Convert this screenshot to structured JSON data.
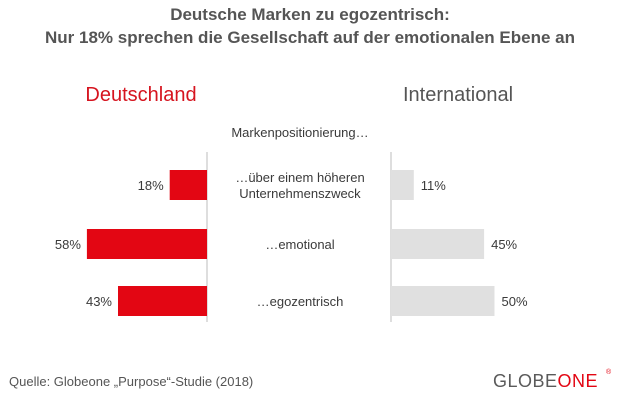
{
  "title_line1": "Deutsche Marken zu egozentrisch:",
  "title_line2": "Nur 18% sprechen die Gesellschaft auf der emotionalen Ebene an",
  "colors": {
    "left_bar": "#e30613",
    "right_bar": "#e0e0e0",
    "left_label": "#d6141f",
    "right_label": "#555555",
    "text": "#3a3a3a",
    "logo_accent": "#e30613"
  },
  "chart_data": {
    "type": "bar",
    "orientation": "horizontal",
    "layout": "back-to-back",
    "center_header": "Markenpositionierung…",
    "categories": [
      [
        "…über einem höheren",
        "Unternehmenszweck"
      ],
      [
        "…emotional"
      ],
      [
        "…egozentrisch"
      ]
    ],
    "series": [
      {
        "name": "Deutschland",
        "values": [
          18,
          58,
          43
        ],
        "value_labels": [
          "18%",
          "58%",
          "43%"
        ]
      },
      {
        "name": "International",
        "values": [
          11,
          45,
          50
        ],
        "value_labels": [
          "11%",
          "45%",
          "50%"
        ]
      }
    ],
    "unit": "%",
    "xlim": [
      0,
      60
    ],
    "grid": false
  },
  "source": "Quelle: Globeone „Purpose“-Studie (2018)",
  "logo": {
    "part1": "GLOBE",
    "part2": "ONE",
    "mark": "®"
  }
}
